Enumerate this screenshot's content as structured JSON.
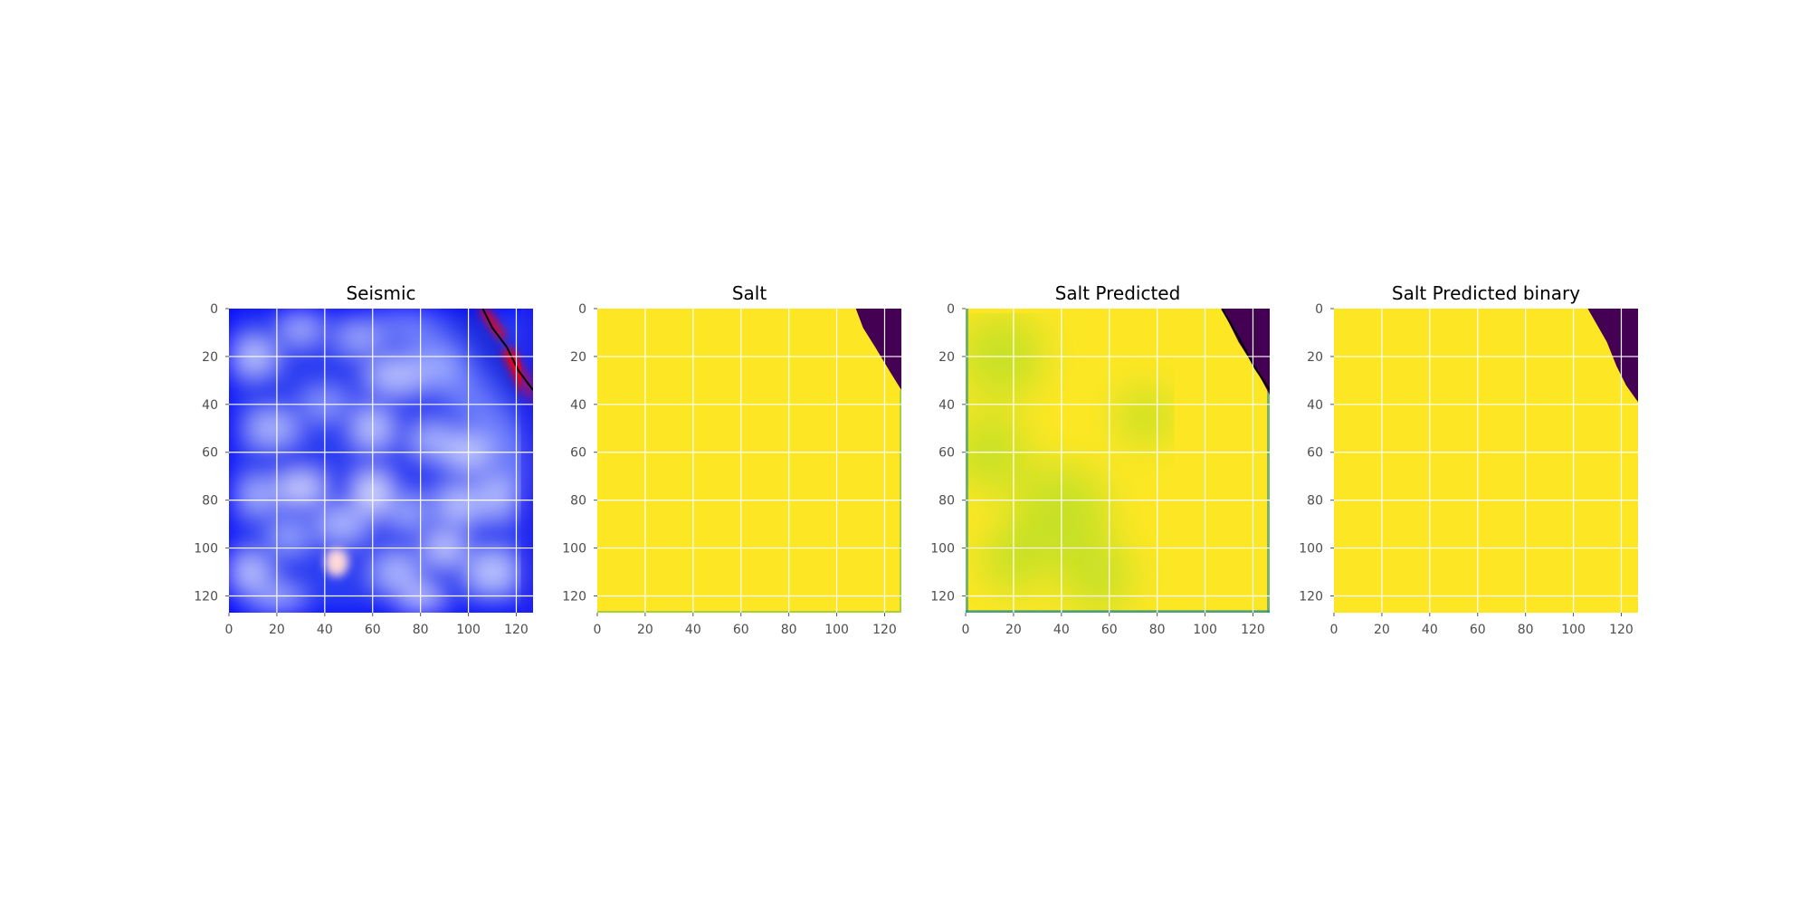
{
  "figure": {
    "background": "#ffffff"
  },
  "chart_data": [
    {
      "type": "heatmap",
      "title": "Seismic",
      "colormap": "seismic",
      "colors": [
        "#0000ff",
        "#ffffff",
        "#ff0000"
      ],
      "xlim": [
        0,
        127
      ],
      "ylim": [
        127,
        0
      ],
      "xticks": [
        0,
        20,
        40,
        60,
        80,
        100,
        120
      ],
      "yticks": [
        0,
        20,
        40,
        60,
        80,
        100,
        120
      ],
      "tick_labels_x": [
        "0",
        "20",
        "40",
        "60",
        "80",
        "100",
        "120"
      ],
      "tick_labels_y": [
        "0",
        "20",
        "40",
        "60",
        "80",
        "100",
        "120"
      ],
      "grid": true,
      "salt_boundary_contour": [
        [
          106,
          0
        ],
        [
          110,
          8
        ],
        [
          116,
          16
        ],
        [
          121,
          26
        ],
        [
          127,
          34
        ]
      ]
    },
    {
      "type": "heatmap",
      "title": "Salt",
      "colormap": "viridis",
      "colors": [
        "#440154",
        "#fde725"
      ],
      "xlim": [
        0,
        127
      ],
      "ylim": [
        127,
        0
      ],
      "xticks": [
        0,
        20,
        40,
        60,
        80,
        100,
        120
      ],
      "yticks": [
        0,
        20,
        40,
        60,
        80,
        100,
        120
      ],
      "tick_labels_x": [
        "0",
        "20",
        "40",
        "60",
        "80",
        "100",
        "120"
      ],
      "tick_labels_y": [
        "0",
        "20",
        "40",
        "60",
        "80",
        "100",
        "120"
      ],
      "grid": true,
      "non_salt_region": [
        [
          108,
          0
        ],
        [
          127,
          0
        ],
        [
          127,
          34
        ],
        [
          122,
          26
        ],
        [
          116,
          16
        ],
        [
          111,
          8
        ]
      ]
    },
    {
      "type": "heatmap",
      "title": "Salt Predicted",
      "colormap": "viridis",
      "colors": [
        "#440154",
        "#21918c",
        "#bddf26",
        "#fde725"
      ],
      "xlim": [
        0,
        127
      ],
      "ylim": [
        127,
        0
      ],
      "xticks": [
        0,
        20,
        40,
        60,
        80,
        100,
        120
      ],
      "yticks": [
        0,
        20,
        40,
        60,
        80,
        100,
        120
      ],
      "tick_labels_x": [
        "0",
        "20",
        "40",
        "60",
        "80",
        "100",
        "120"
      ],
      "tick_labels_y": [
        "0",
        "20",
        "40",
        "60",
        "80",
        "100",
        "120"
      ],
      "grid": true,
      "non_salt_region": [
        [
          107,
          0
        ],
        [
          127,
          0
        ],
        [
          127,
          36
        ],
        [
          121,
          25
        ],
        [
          114,
          14
        ]
      ],
      "salt_boundary_contour": [
        [
          107,
          0
        ],
        [
          114,
          12
        ],
        [
          121,
          25
        ],
        [
          127,
          34
        ]
      ]
    },
    {
      "type": "heatmap",
      "title": "Salt Predicted binary",
      "colormap": "viridis",
      "colors": [
        "#440154",
        "#fde725"
      ],
      "xlim": [
        0,
        127
      ],
      "ylim": [
        127,
        0
      ],
      "xticks": [
        0,
        20,
        40,
        60,
        80,
        100,
        120
      ],
      "yticks": [
        0,
        20,
        40,
        60,
        80,
        100,
        120
      ],
      "tick_labels_x": [
        "0",
        "20",
        "40",
        "60",
        "80",
        "100",
        "120"
      ],
      "tick_labels_y": [
        "0",
        "20",
        "40",
        "60",
        "80",
        "100",
        "120"
      ],
      "grid": true,
      "non_salt_region": [
        [
          106,
          0
        ],
        [
          127,
          0
        ],
        [
          127,
          39
        ],
        [
          122,
          32
        ],
        [
          118,
          24
        ],
        [
          114,
          14
        ]
      ]
    }
  ]
}
